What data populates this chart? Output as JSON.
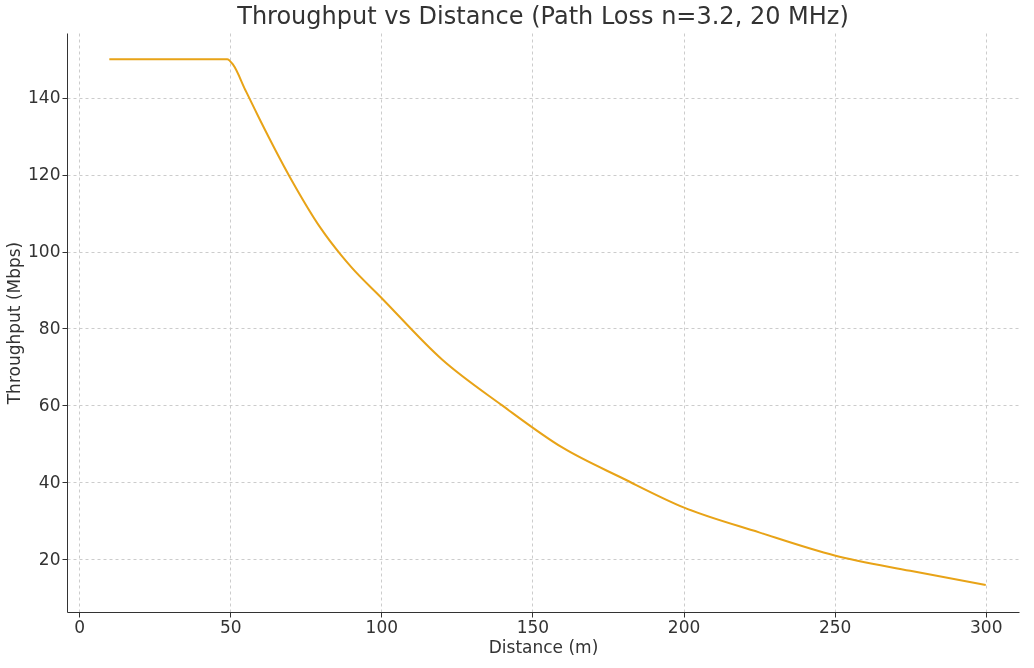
{
  "chart_data": {
    "type": "line",
    "title": "Throughput vs Distance (Path Loss n=3.2, 20 MHz)",
    "xlabel": "Distance (m)",
    "ylabel": "Throughput (Mbps)",
    "x": [
      10,
      20,
      30,
      40,
      49,
      51,
      55,
      60,
      70,
      80,
      90,
      100,
      120,
      140,
      160,
      180,
      200,
      225,
      250,
      275,
      300
    ],
    "series": [
      {
        "color": "#e8a317",
        "values": [
          150,
          150,
          150,
          150,
          150,
          148.5,
          142,
          134,
          119,
          106,
          96,
          88,
          72,
          60,
          49,
          41,
          33.5,
          27,
          21,
          17,
          13.3
        ]
      }
    ],
    "xlim": [
      -4,
      311
    ],
    "ylim": [
      6.3,
      156.8
    ],
    "xticks": [
      0,
      50,
      100,
      150,
      200,
      250,
      300
    ],
    "yticks": [
      20,
      40,
      60,
      80,
      100,
      120,
      140
    ],
    "grid": true,
    "marker": "none",
    "line_style": "solid"
  }
}
